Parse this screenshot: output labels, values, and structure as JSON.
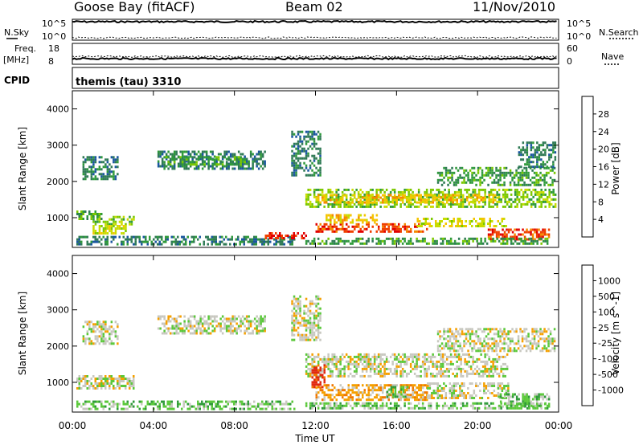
{
  "header": {
    "station": "Goose Bay (fitACF)",
    "beam": "Beam 02",
    "date": "11/Nov/2010"
  },
  "strip_panels": {
    "nsky": {
      "left_label": "N.Sky",
      "left_ticks": [
        "10^5",
        "10^0"
      ],
      "right_label": "N.Search",
      "right_ticks": [
        "10^5",
        "10^0"
      ]
    },
    "freq": {
      "left_label_1": "Freq.",
      "left_label_2": "[MHz]",
      "left_ticks": [
        "18",
        "8"
      ],
      "right_label": "Nave",
      "right_ticks": [
        "60",
        "0"
      ]
    },
    "cpid": {
      "left_label": "CPID",
      "text": "themis (tau) 3310"
    }
  },
  "colorbars": {
    "power": {
      "label": "Power [dB]",
      "ticks": [
        "28",
        "24",
        "20",
        "16",
        "12",
        "8",
        "4"
      ],
      "colors": [
        "#e10000",
        "#f04000",
        "#f58a00",
        "#f5c400",
        "#c8dc00",
        "#7bc800",
        "#2f9a3a",
        "#2f7a55",
        "#1a56a0",
        "#0020e6"
      ]
    },
    "velocity": {
      "label": "Velocity [m s^-1]",
      "ticks": [
        "1000",
        "500",
        "100",
        "25",
        "-25",
        "-100",
        "-500",
        "-1000"
      ],
      "colors": [
        "#1f3fd0",
        "#2a7a80",
        "#2f9a3a",
        "#5ac83a",
        "#c8c8c0",
        "#f5a000",
        "#f07800",
        "#e12a10"
      ]
    }
  },
  "chart_data": [
    {
      "type": "line",
      "title": "N.Sky / N.Search",
      "x_range": [
        "00:00",
        "24:00"
      ],
      "series": [
        {
          "name": "N.Sky",
          "x": [
            "00:00",
            "04:00",
            "08:00",
            "12:00",
            "16:00",
            "20:00",
            "24:00"
          ],
          "values": [
            100000,
            100000,
            100000,
            100000,
            100000,
            100000,
            100000
          ]
        },
        {
          "name": "N.Search",
          "x": [
            "00:00",
            "04:00",
            "08:00",
            "12:00",
            "16:00",
            "20:00",
            "24:00"
          ],
          "values": [
            1,
            1,
            1,
            1,
            1,
            1,
            1
          ]
        }
      ]
    },
    {
      "type": "line",
      "title": "Freq. / Nave",
      "x_range": [
        "00:00",
        "24:00"
      ],
      "series": [
        {
          "name": "Freq.",
          "unit": "MHz",
          "x": [
            "00:00",
            "04:00",
            "08:00",
            "12:00",
            "16:00",
            "20:00",
            "24:00"
          ],
          "values": [
            10,
            10,
            10,
            10,
            10,
            10,
            10
          ]
        },
        {
          "name": "Nave",
          "x": [
            "00:00",
            "04:00",
            "08:00",
            "12:00",
            "16:00",
            "20:00",
            "24:00"
          ],
          "values": [
            20,
            20,
            20,
            20,
            20,
            20,
            20
          ]
        }
      ]
    },
    {
      "type": "heatmap",
      "title": "Power",
      "ylabel": "Slant Range [km]",
      "xlabel": "Time UT",
      "x_ticks": [
        "00:00",
        "04:00",
        "08:00",
        "12:00",
        "16:00",
        "20:00",
        "00:00"
      ],
      "y_ticks": [
        "1000",
        "2000",
        "3000",
        "4000"
      ],
      "x_range_h": [
        0,
        24
      ],
      "y_range_km": [
        180,
        4500
      ],
      "regions": [
        {
          "t0": 0.2,
          "t1": 1.4,
          "r0": 950,
          "r1": 1200,
          "level": 6
        },
        {
          "t0": 1.0,
          "t1": 3.0,
          "r0": 850,
          "r1": 1050,
          "level": 5
        },
        {
          "t0": 1.0,
          "t1": 2.6,
          "r0": 600,
          "r1": 800,
          "level": 4
        },
        {
          "t0": 0.5,
          "t1": 2.2,
          "r0": 2100,
          "r1": 2700,
          "level": 7
        },
        {
          "t0": 4.2,
          "t1": 9.5,
          "r0": 2350,
          "r1": 2850,
          "level": 7
        },
        {
          "t0": 4.5,
          "t1": 8.5,
          "r0": 2500,
          "r1": 2700,
          "level": 6
        },
        {
          "t0": 0.2,
          "t1": 11.0,
          "r0": 300,
          "r1": 500,
          "level": 7
        },
        {
          "t0": 9.5,
          "t1": 11.5,
          "r0": 450,
          "r1": 600,
          "level": 0
        },
        {
          "t0": 11.5,
          "t1": 23.8,
          "r0": 1300,
          "r1": 1800,
          "level": 5
        },
        {
          "t0": 12.0,
          "t1": 21.0,
          "r0": 1450,
          "r1": 1650,
          "level": 3
        },
        {
          "t0": 12.0,
          "t1": 17.5,
          "r0": 600,
          "r1": 850,
          "level": 1
        },
        {
          "t0": 12.5,
          "t1": 15.0,
          "r0": 900,
          "r1": 1100,
          "level": 3
        },
        {
          "t0": 17.0,
          "t1": 21.5,
          "r0": 800,
          "r1": 1000,
          "level": 4
        },
        {
          "t0": 20.5,
          "t1": 23.5,
          "r0": 400,
          "r1": 700,
          "level": 1
        },
        {
          "t0": 18.0,
          "t1": 23.8,
          "r0": 1900,
          "r1": 2400,
          "level": 6
        },
        {
          "t0": 22.0,
          "t1": 23.8,
          "r0": 2400,
          "r1": 3100,
          "level": 7
        },
        {
          "t0": 10.8,
          "t1": 12.2,
          "r0": 2200,
          "r1": 3400,
          "level": 7
        },
        {
          "t0": 11.5,
          "t1": 23.5,
          "r0": 300,
          "r1": 450,
          "level": 6
        }
      ]
    },
    {
      "type": "heatmap",
      "title": "Velocity",
      "ylabel": "Slant Range [km]",
      "xlabel": "Time UT",
      "x_ticks": [
        "00:00",
        "04:00",
        "08:00",
        "12:00",
        "16:00",
        "20:00",
        "00:00"
      ],
      "y_ticks": [
        "1000",
        "2000",
        "3000",
        "4000"
      ],
      "x_range_h": [
        0,
        24
      ],
      "y_range_km": [
        180,
        4500
      ],
      "regions": [
        {
          "t0": 0.2,
          "t1": 3.0,
          "r0": 850,
          "r1": 1200,
          "level": 4
        },
        {
          "t0": 0.5,
          "t1": 2.2,
          "r0": 2100,
          "r1": 2700,
          "level": 4
        },
        {
          "t0": 4.2,
          "t1": 9.5,
          "r0": 2350,
          "r1": 2850,
          "level": 4
        },
        {
          "t0": 0.2,
          "t1": 11.0,
          "r0": 300,
          "r1": 500,
          "level": 3
        },
        {
          "t0": 11.5,
          "t1": 21.5,
          "r0": 1200,
          "r1": 1800,
          "level": 4
        },
        {
          "t0": 12.0,
          "t1": 17.5,
          "r0": 550,
          "r1": 950,
          "level": 5
        },
        {
          "t0": 15.5,
          "t1": 16.5,
          "r0": 600,
          "r1": 900,
          "level": 3
        },
        {
          "t0": 17.5,
          "t1": 21.5,
          "r0": 600,
          "r1": 1000,
          "level": 4
        },
        {
          "t0": 18.0,
          "t1": 23.8,
          "r0": 1900,
          "r1": 2500,
          "level": 4
        },
        {
          "t0": 21.0,
          "t1": 23.5,
          "r0": 350,
          "r1": 700,
          "level": 3
        },
        {
          "t0": 10.8,
          "t1": 12.2,
          "r0": 2200,
          "r1": 3400,
          "level": 4
        },
        {
          "t0": 11.8,
          "t1": 12.4,
          "r0": 900,
          "r1": 1500,
          "level": 7
        },
        {
          "t0": 11.5,
          "t1": 23.5,
          "r0": 300,
          "r1": 450,
          "level": 3
        }
      ]
    }
  ]
}
